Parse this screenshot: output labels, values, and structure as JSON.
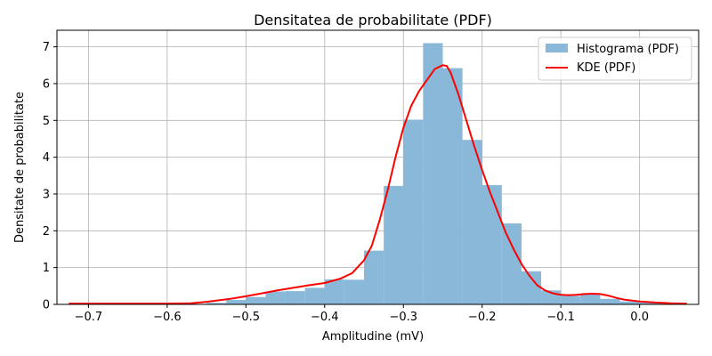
{
  "chart_data": {
    "type": "bar",
    "title": "Densitatea de probabilitate (PDF)",
    "xlabel": "Amplitudine (mV)",
    "ylabel": "Densitate de probabilitate",
    "xlim": [
      -0.74,
      0.075
    ],
    "ylim": [
      0,
      7.45
    ],
    "xticks": [
      -0.7,
      -0.6,
      -0.5,
      -0.4,
      -0.3,
      -0.2,
      -0.1,
      0.0
    ],
    "xtick_labels": [
      "−0.7",
      "−0.6",
      "−0.5",
      "−0.4",
      "−0.3",
      "−0.2",
      "−0.1",
      "0.0"
    ],
    "yticks": [
      0,
      1,
      2,
      3,
      4,
      5,
      6,
      7
    ],
    "ytick_labels": [
      "0",
      "1",
      "2",
      "3",
      "4",
      "5",
      "6",
      "7"
    ],
    "grid": true,
    "legend_position": "top-right",
    "histogram": {
      "name": "Histograma (PDF)",
      "color": "#89b8d9",
      "bin_edges": [
        -0.725,
        -0.7,
        -0.675,
        -0.65,
        -0.625,
        -0.6,
        -0.575,
        -0.55,
        -0.525,
        -0.5,
        -0.475,
        -0.45,
        -0.425,
        -0.4,
        -0.375,
        -0.35,
        -0.325,
        -0.3,
        -0.275,
        -0.25,
        -0.225,
        -0.2,
        -0.175,
        -0.15,
        -0.125,
        -0.1,
        -0.075,
        -0.05,
        -0.025,
        0.0,
        0.025,
        0.05
      ],
      "values": [
        0.02,
        0.0,
        0.0,
        0.0,
        0.0,
        0.0,
        0.0,
        0.04,
        0.12,
        0.2,
        0.35,
        0.36,
        0.45,
        0.68,
        0.67,
        1.46,
        3.22,
        5.02,
        7.1,
        6.42,
        4.47,
        3.24,
        2.2,
        0.9,
        0.38,
        0.23,
        0.3,
        0.15,
        0.08,
        0.05,
        0.02
      ]
    },
    "kde": {
      "name": "KDE (PDF)",
      "color": "#ff0000",
      "x": [
        -0.725,
        -0.7,
        -0.65,
        -0.6,
        -0.57,
        -0.55,
        -0.52,
        -0.5,
        -0.48,
        -0.46,
        -0.44,
        -0.42,
        -0.4,
        -0.38,
        -0.365,
        -0.35,
        -0.34,
        -0.33,
        -0.32,
        -0.31,
        -0.3,
        -0.29,
        -0.28,
        -0.27,
        -0.26,
        -0.25,
        -0.245,
        -0.24,
        -0.23,
        -0.22,
        -0.21,
        -0.2,
        -0.19,
        -0.18,
        -0.17,
        -0.16,
        -0.15,
        -0.14,
        -0.13,
        -0.12,
        -0.11,
        -0.1,
        -0.09,
        -0.08,
        -0.07,
        -0.06,
        -0.05,
        -0.04,
        -0.03,
        -0.02,
        0.0,
        0.02,
        0.04,
        0.06
      ],
      "y": [
        0.02,
        0.02,
        0.02,
        0.02,
        0.03,
        0.07,
        0.15,
        0.22,
        0.3,
        0.38,
        0.45,
        0.52,
        0.58,
        0.7,
        0.85,
        1.2,
        1.6,
        2.3,
        3.1,
        4.0,
        4.8,
        5.4,
        5.8,
        6.1,
        6.4,
        6.5,
        6.48,
        6.3,
        5.7,
        5.0,
        4.3,
        3.65,
        3.05,
        2.5,
        1.95,
        1.5,
        1.1,
        0.78,
        0.52,
        0.38,
        0.3,
        0.26,
        0.25,
        0.26,
        0.28,
        0.29,
        0.28,
        0.24,
        0.18,
        0.13,
        0.08,
        0.05,
        0.03,
        0.02
      ]
    }
  }
}
